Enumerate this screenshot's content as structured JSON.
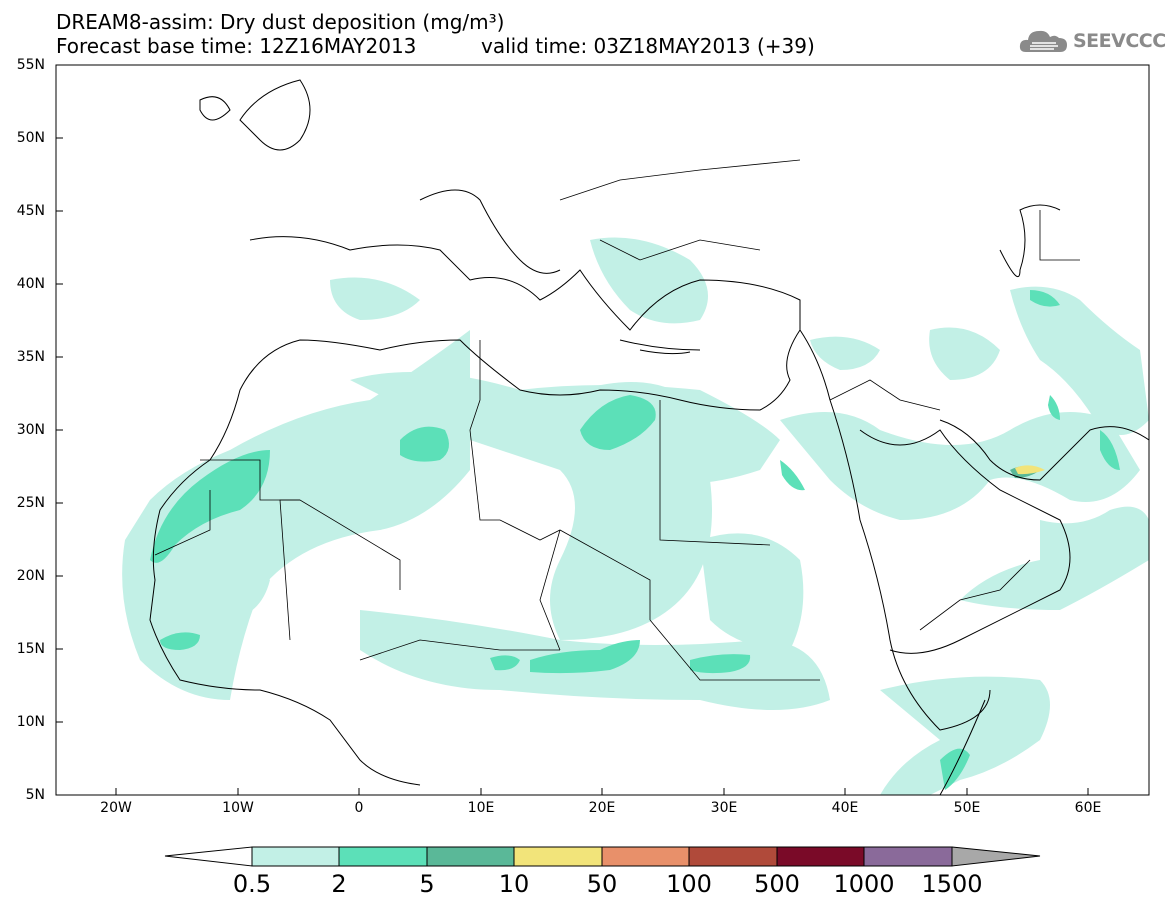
{
  "header": {
    "title_line1": "DREAM8-assim: Dry dust deposition (mg/m³)",
    "title_line2": "Forecast base time: 12Z16MAY2013",
    "valid_time": "valid time: 03Z18MAY2013 (+39)"
  },
  "logo": {
    "text": "SEEVCCC",
    "icon": "cloud-icon"
  },
  "map": {
    "lat_labels": [
      "55N",
      "50N",
      "45N",
      "40N",
      "35N",
      "30N",
      "25N",
      "20N",
      "15N",
      "10N",
      "5N"
    ],
    "lon_labels": [
      "20W",
      "10W",
      "0",
      "10E",
      "20E",
      "30E",
      "40E",
      "50E",
      "60E"
    ],
    "lat_range": [
      5,
      55
    ],
    "lon_range": [
      -25,
      65
    ]
  },
  "colorbar": {
    "labels": [
      "0.5",
      "2",
      "5",
      "10",
      "50",
      "100",
      "500",
      "1000",
      "1500"
    ],
    "colors": [
      "#ffffff",
      "#c2f0e6",
      "#5ce0b8",
      "#5ab898",
      "#f2e47a",
      "#e8906a",
      "#b04a3a",
      "#7a0a28",
      "#8a6a9a",
      "#a8a8a8"
    ]
  }
}
